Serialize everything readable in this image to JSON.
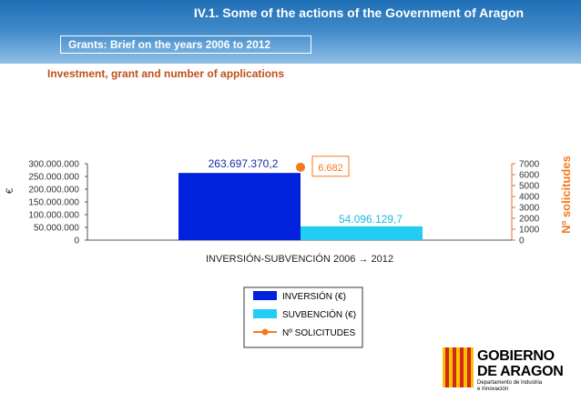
{
  "header": {
    "title": "IV.1. Some of the actions of the Government of Aragon",
    "subtitle": "Grants: Brief on the years 2006 to 2012"
  },
  "section_title": "Investment, grant and number of applications",
  "colors": {
    "banner": "#2f7fc1",
    "section_title": "#c0501b",
    "inversion": "#0022dd",
    "subvencion": "#22ccf2",
    "solicitudes": "#f47a20"
  },
  "chart_data": {
    "type": "bar",
    "categories": [
      "INVERSIÓN-SUBVENCIÓN 2006 → 2012"
    ],
    "xlabel": "INVERSIÓN-SUBVENCIÓN 2006 → 2012",
    "left_axis": {
      "label": "€",
      "ylim": [
        0,
        300000000
      ],
      "ticks": [
        "0",
        "50.000.000",
        "100.000.000",
        "150.000.000",
        "200.000.000",
        "250.000.000",
        "300.000.000"
      ],
      "tick_values": [
        0,
        50000000,
        100000000,
        150000000,
        200000000,
        250000000,
        300000000
      ]
    },
    "right_axis": {
      "label": "Nº solicitudes",
      "ylim": [
        0,
        7000
      ],
      "ticks": [
        "0",
        "1000",
        "2000",
        "3000",
        "4000",
        "5000",
        "6000",
        "7000"
      ],
      "tick_values": [
        0,
        1000,
        2000,
        3000,
        4000,
        5000,
        6000,
        7000
      ]
    },
    "series": [
      {
        "name": "INVERSIÓN (€)",
        "axis": "left",
        "kind": "bar",
        "value": 263697370.2,
        "label": "263.697.370,2"
      },
      {
        "name": "SUVBENCIÓN (€)",
        "axis": "left",
        "kind": "bar",
        "value": 54096129.7,
        "label": "54.096.129,7"
      },
      {
        "name": "Nº SOLICITUDES",
        "axis": "right",
        "kind": "point",
        "value": 6682,
        "label": "6.682"
      }
    ],
    "legend": "bottom-center"
  },
  "logo": {
    "line1": "GOBIERNO",
    "line2": "DE ARAGON",
    "dept1": "Departamento de Industria",
    "dept2": "e Innovación"
  }
}
